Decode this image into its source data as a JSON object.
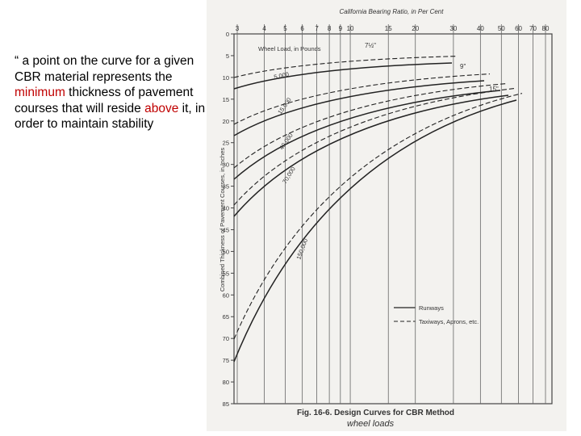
{
  "slide": {
    "text": [
      "“ a point on the curve for a given CBR material represents the ",
      "minimum",
      " thickness of pavement courses that will reside ",
      "above",
      " it, in order to maintain stability"
    ]
  },
  "figure": {
    "top_axis_title": "California Bearing Ratio, in Per Cent",
    "top_ticks": [
      3,
      4,
      5,
      6,
      7,
      8,
      9,
      10,
      15,
      20,
      30,
      40,
      50,
      60,
      70,
      80
    ],
    "y_axis_title": "Combined Thickness of Pavement Courses, in Inches",
    "y_ticks": [
      0,
      5,
      10,
      15,
      20,
      25,
      30,
      35,
      40,
      45,
      50,
      55,
      60,
      65,
      70,
      75,
      80,
      85
    ],
    "wheel_load_title": "Wheel Load, in Pounds",
    "curve_labels": [
      "5,000",
      "15,000",
      "40,000",
      "70,000",
      "150,000"
    ],
    "thickness_labels": [
      "7½\"",
      "9\"",
      "15\""
    ],
    "legend": [
      "Runways",
      "Taxiways, Aprons, etc."
    ],
    "caption": "Fig. 16-6. Design Curves for CBR Method",
    "handwritten": "wheel loads"
  }
}
